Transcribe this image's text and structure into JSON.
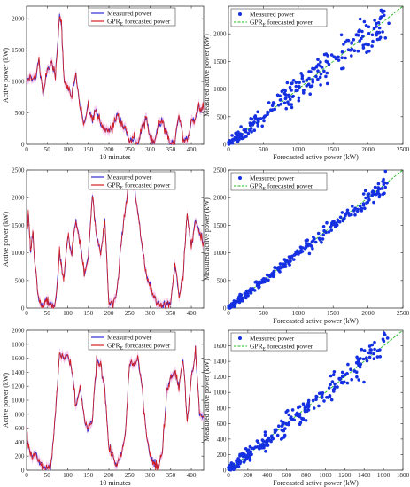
{
  "colors": {
    "measured": "#2b2bd6",
    "forecast": "#d62020",
    "band": "#f2b8e8",
    "scatter": "#1530e0",
    "diag": "#22bb22",
    "axis": "#222222"
  },
  "chart_data": [
    {
      "id": "ts1",
      "type": "line",
      "xlabel": "10 minutes",
      "ylabel": "Active power (kW)",
      "xlim": [
        0,
        430
      ],
      "ylim": [
        0,
        2200
      ],
      "xticks": [
        "0",
        "50",
        "100",
        "150",
        "200",
        "250",
        "300",
        "350",
        "400"
      ],
      "yticks": [
        "0",
        "500",
        "1000",
        "1500",
        "2000"
      ],
      "yticks_values": [
        0,
        500,
        1000,
        1500,
        2000
      ],
      "xticks_values": [
        0,
        50,
        100,
        150,
        200,
        250,
        300,
        350,
        400
      ],
      "legend": {
        "measured": "Measured power",
        "forecast_main": "GPR",
        "forecast_sub": "E",
        "forecast_tail": " forecasted power"
      },
      "series": {
        "x": [
          0,
          10,
          20,
          30,
          40,
          50,
          60,
          70,
          80,
          85,
          90,
          100,
          110,
          120,
          130,
          140,
          150,
          160,
          170,
          180,
          190,
          200,
          210,
          220,
          230,
          240,
          250,
          260,
          270,
          280,
          290,
          300,
          310,
          320,
          330,
          340,
          350,
          360,
          370,
          380,
          390,
          400,
          410,
          420,
          430
        ],
        "values": [
          950,
          1100,
          1000,
          1350,
          800,
          1150,
          1300,
          1050,
          2100,
          1900,
          1100,
          900,
          750,
          1100,
          550,
          350,
          650,
          400,
          550,
          300,
          250,
          200,
          300,
          450,
          350,
          250,
          100,
          100,
          0,
          250,
          400,
          120,
          50,
          300,
          400,
          150,
          0,
          50,
          450,
          100,
          50,
          350,
          450,
          600,
          550
        ]
      }
    },
    {
      "id": "sc1",
      "type": "scatter",
      "xlabel": "Forecasted active power (kW)",
      "ylabel": "Measured active power (kW)",
      "xlim": [
        0,
        2500
      ],
      "ylim": [
        0,
        2500
      ],
      "xticks": [
        "0",
        "500",
        "1000",
        "1500",
        "2000",
        "2500"
      ],
      "yticks": [
        "0",
        "500",
        "1000",
        "1500",
        "2000"
      ],
      "xticks_values": [
        0,
        500,
        1000,
        1500,
        2000,
        2500
      ],
      "yticks_values": [
        0,
        500,
        1000,
        1500,
        2000
      ],
      "legend": {
        "measured": "Measured power",
        "forecast_main": "GPR",
        "forecast_sub": "E",
        "forecast_tail": " forecasted power"
      },
      "spread": 280
    },
    {
      "id": "ts2",
      "type": "line",
      "xlabel": "",
      "ylabel": "Active power (kW)",
      "xlim": [
        0,
        430
      ],
      "ylim": [
        0,
        2500
      ],
      "xticks": [
        "0",
        "50",
        "100",
        "150",
        "200",
        "250",
        "300",
        "350",
        "400"
      ],
      "yticks": [
        "0",
        "500",
        "1000",
        "1500",
        "2000",
        "2500"
      ],
      "xticks_values": [
        0,
        50,
        100,
        150,
        200,
        250,
        300,
        350,
        400
      ],
      "yticks_values": [
        0,
        500,
        1000,
        1500,
        2000,
        2500
      ],
      "legend": {
        "measured": "Measured power",
        "forecast_main": "GPR",
        "forecast_sub": "E",
        "forecast_tail": " forecasted power"
      },
      "series": {
        "x": [
          0,
          5,
          10,
          15,
          20,
          30,
          40,
          50,
          60,
          70,
          80,
          90,
          100,
          110,
          120,
          130,
          140,
          150,
          160,
          170,
          180,
          190,
          200,
          210,
          220,
          230,
          240,
          250,
          260,
          270,
          280,
          290,
          300,
          310,
          320,
          330,
          340,
          350,
          360,
          370,
          380,
          390,
          400,
          410,
          420,
          430
        ],
        "values": [
          1500,
          1650,
          1000,
          1400,
          800,
          100,
          50,
          150,
          50,
          100,
          1000,
          500,
          1300,
          1000,
          1600,
          1200,
          600,
          900,
          2100,
          1300,
          1000,
          1600,
          100,
          50,
          300,
          1200,
          1800,
          2400,
          2200,
          1800,
          1100,
          600,
          400,
          200,
          50,
          50,
          50,
          100,
          800,
          250,
          600,
          1700,
          1100,
          1600,
          1400,
          1200
        ]
      }
    },
    {
      "id": "sc2",
      "type": "scatter",
      "xlabel": "Forecasted active power (kW)",
      "ylabel": "Measured active power (kW)",
      "xlim": [
        0,
        2500
      ],
      "ylim": [
        0,
        2500
      ],
      "xticks": [
        "0",
        "500",
        "1000",
        "1500",
        "2000",
        "2500"
      ],
      "yticks": [
        "0",
        "500",
        "1000",
        "1500",
        "2000",
        "2500"
      ],
      "xticks_values": [
        0,
        500,
        1000,
        1500,
        2000,
        2500
      ],
      "yticks_values": [
        0,
        500,
        1000,
        1500,
        2000,
        2500
      ],
      "legend": {
        "measured": "Measured power",
        "forecast_main": "GPR",
        "forecast_sub": "E",
        "forecast_tail": " forecasted power"
      },
      "spread": 120
    },
    {
      "id": "ts3",
      "type": "line",
      "xlabel": "10 minutes",
      "ylabel": "Active power (kW)",
      "xlim": [
        0,
        430
      ],
      "ylim": [
        0,
        2000
      ],
      "xticks": [
        "0",
        "50",
        "100",
        "150",
        "200",
        "250",
        "300",
        "350",
        "400"
      ],
      "yticks": [
        "0",
        "200",
        "400",
        "600",
        "800",
        "1000",
        "1200",
        "1400",
        "1600",
        "1800",
        "2000"
      ],
      "xticks_values": [
        0,
        50,
        100,
        150,
        200,
        250,
        300,
        350,
        400
      ],
      "yticks_values": [
        0,
        200,
        400,
        600,
        800,
        1000,
        1200,
        1400,
        1600,
        1800,
        2000
      ],
      "legend": {
        "measured": "Measured power",
        "forecast_main": "GPR",
        "forecast_sub": "E",
        "forecast_tail": " forecasted power"
      },
      "series": {
        "x": [
          0,
          5,
          10,
          20,
          30,
          40,
          50,
          60,
          70,
          80,
          90,
          100,
          110,
          120,
          130,
          140,
          150,
          160,
          170,
          180,
          190,
          200,
          210,
          220,
          230,
          240,
          250,
          260,
          270,
          280,
          290,
          300,
          310,
          320,
          330,
          340,
          350,
          360,
          370,
          380,
          390,
          400,
          410,
          420,
          430
        ],
        "values": [
          650,
          300,
          200,
          250,
          100,
          50,
          50,
          100,
          800,
          1650,
          1600,
          1650,
          1400,
          900,
          1200,
          700,
          600,
          700,
          1550,
          1500,
          1200,
          300,
          200,
          50,
          200,
          500,
          1550,
          1500,
          1600,
          1200,
          600,
          200,
          100,
          50,
          300,
          1100,
          1300,
          1400,
          1200,
          1600,
          700,
          1300,
          1700,
          800,
          750
        ]
      }
    },
    {
      "id": "sc3",
      "type": "scatter",
      "xlabel": "Forecasted active power (kW)",
      "ylabel": "Measured active power (kW)",
      "xlim": [
        0,
        1800
      ],
      "ylim": [
        0,
        1800
      ],
      "xticks": [
        "0",
        "200",
        "400",
        "600",
        "800",
        "1000",
        "1200",
        "1400",
        "1600",
        "1800"
      ],
      "yticks": [
        "0",
        "200",
        "400",
        "600",
        "800",
        "1000",
        "1200",
        "1400",
        "1600"
      ],
      "xticks_values": [
        0,
        200,
        400,
        600,
        800,
        1000,
        1200,
        1400,
        1600,
        1800
      ],
      "yticks_values": [
        0,
        200,
        400,
        600,
        800,
        1000,
        1200,
        1400,
        1600
      ],
      "legend": {
        "measured": "Measured power",
        "forecast_main": "GPR",
        "forecast_sub": "E",
        "forecast_tail": " forecasted power"
      },
      "spread": 170
    }
  ]
}
